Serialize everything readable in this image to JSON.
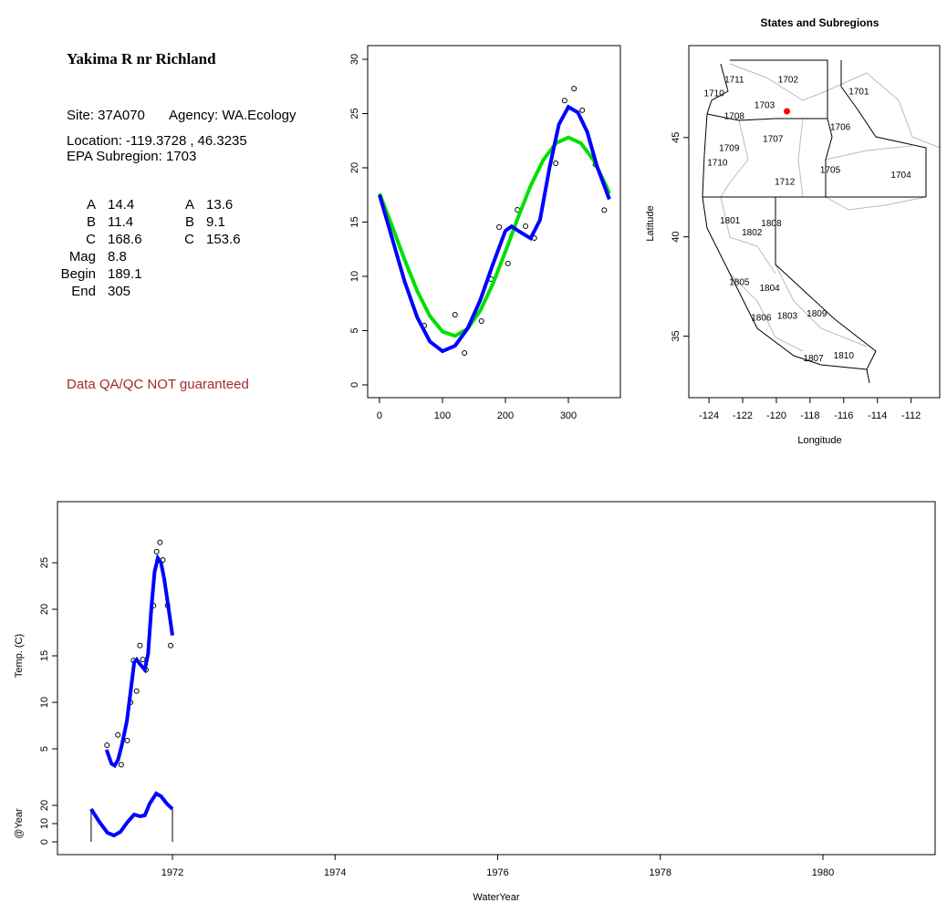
{
  "info": {
    "title": "Yakima R nr Richland",
    "site": "Site: 37A070",
    "agency": "Agency: WA.Ecology",
    "location": {
      "label": "Location:",
      "lon": -119.3728,
      "separator": ",",
      "lat": 46.3235
    },
    "subregion": "EPA Subregion: 1703",
    "params": [
      {
        "label": "A",
        "value": 14.4
      },
      {
        "label": "B",
        "value": 11.4
      },
      {
        "label": "C",
        "value": 168.6
      },
      {
        "label": "Mag",
        "value": 8.8
      },
      {
        "label": "Begin",
        "value": 189.1
      },
      {
        "label": "End",
        "value": 305
      }
    ],
    "params2": [
      {
        "label": "A",
        "value": 13.6
      },
      {
        "label": "B",
        "value": 9.1
      },
      {
        "label": "C",
        "value": 153.6
      }
    ],
    "disclaimer": "Data QA/QC NOT guaranteed",
    "disclaimer_color": "#a52a2a"
  },
  "chart_data": [
    {
      "type": "scatter",
      "xlim": [
        -18.8,
        382.6
      ],
      "ylim": [
        -1.18,
        31.26
      ],
      "xticks": [
        0,
        100,
        200,
        300
      ],
      "yticks": [
        0,
        5,
        10,
        15,
        20,
        25,
        30
      ],
      "points": {
        "x": [
          71,
          120,
          135,
          162,
          177,
          190,
          204,
          219,
          232,
          246,
          280,
          294,
          309,
          322,
          343,
          357
        ],
        "y": [
          5.46,
          6.47,
          2.94,
          5.88,
          9.75,
          14.54,
          11.18,
          16.13,
          14.62,
          13.53,
          20.42,
          26.2,
          27.3,
          25.3,
          20.3,
          16.1
        ]
      },
      "series": [
        {
          "color": "#00e000",
          "x": [
            0,
            20,
            40,
            60,
            80,
            100,
            120,
            140,
            160,
            180,
            200,
            220,
            240,
            260,
            280,
            300,
            320,
            340,
            360,
            365
          ],
          "values": [
            17.64,
            14.63,
            11.51,
            8.63,
            6.34,
            4.91,
            4.51,
            5.18,
            6.84,
            9.3,
            12.28,
            15.41,
            18.34,
            20.71,
            22.26,
            22.8,
            22.26,
            20.71,
            18.34,
            17.64
          ]
        },
        {
          "color": "#0000ff",
          "x": [
            0,
            20,
            40,
            60,
            80,
            100,
            120,
            140,
            160,
            180,
            200,
            210,
            220,
            240,
            255,
            270,
            285,
            300,
            315,
            330,
            345,
            365
          ],
          "values": [
            17.5,
            13.5,
            9.5,
            6.2,
            4.0,
            3.1,
            3.6,
            5.2,
            7.8,
            11.1,
            14.2,
            14.6,
            14.2,
            13.5,
            15.2,
            20.0,
            24.0,
            25.6,
            25.1,
            23.3,
            20.2,
            17.1
          ]
        }
      ]
    },
    {
      "type": "map",
      "title": "States and Subregions",
      "xlabel": "Longitude",
      "ylabel": "Latitude",
      "xlim": [
        -125.2,
        -110.3
      ],
      "ylim": [
        31.9,
        49.63
      ],
      "xticks": [
        -124,
        -122,
        -120,
        -118,
        -116,
        -114,
        -112
      ],
      "yticks": [
        35,
        40,
        45
      ],
      "site_color": "#ff0000",
      "regions": [
        {
          "label": "1711",
          "lon": -122.5,
          "lat": 47.9
        },
        {
          "label": "1702",
          "lon": -119.3,
          "lat": 47.9
        },
        {
          "label": "1710",
          "lon": -123.7,
          "lat": 47.2
        },
        {
          "label": "1703",
          "lon": -120.7,
          "lat": 46.6
        },
        {
          "label": "1701",
          "lon": -115.1,
          "lat": 47.3
        },
        {
          "label": "1708",
          "lon": -122.5,
          "lat": 46.05
        },
        {
          "label": "1706",
          "lon": -116.2,
          "lat": 45.5
        },
        {
          "label": "1707",
          "lon": -120.2,
          "lat": 44.9
        },
        {
          "label": "1709",
          "lon": -122.8,
          "lat": 44.45
        },
        {
          "label": "1710",
          "lon": -123.5,
          "lat": 43.7
        },
        {
          "label": "1705",
          "lon": -116.8,
          "lat": 43.35
        },
        {
          "label": "1704",
          "lon": -112.6,
          "lat": 43.1
        },
        {
          "label": "1712",
          "lon": -119.5,
          "lat": 42.75
        },
        {
          "label": "1801",
          "lon": -122.75,
          "lat": 40.8
        },
        {
          "label": "1808",
          "lon": -120.3,
          "lat": 40.65
        },
        {
          "label": "1802",
          "lon": -121.45,
          "lat": 40.2
        },
        {
          "label": "1805",
          "lon": -122.2,
          "lat": 37.7
        },
        {
          "label": "1804",
          "lon": -120.4,
          "lat": 37.4
        },
        {
          "label": "1806",
          "lon": -120.9,
          "lat": 35.9
        },
        {
          "label": "1803",
          "lon": -119.35,
          "lat": 36.0
        },
        {
          "label": "1809",
          "lon": -117.6,
          "lat": 36.1
        },
        {
          "label": "1810",
          "lon": -116.0,
          "lat": 34.0
        },
        {
          "label": "1807",
          "lon": -117.8,
          "lat": 33.85
        }
      ]
    },
    {
      "type": "timeseries",
      "xlabel": "WaterYear",
      "ylabel": "Temp. (C)",
      "y2label": "@Year",
      "xlim": [
        1970.586,
        1981.38
      ],
      "ylim": [
        -6.37,
        31.57
      ],
      "y2lim": [
        -7,
        186.5
      ],
      "xticks": [
        1972,
        1974,
        1976,
        1978,
        1980
      ],
      "yticks": [
        5,
        10,
        15,
        20,
        25
      ],
      "y2ticks": [
        0,
        10,
        20
      ],
      "points": {
        "x": [
          1971.195,
          1971.329,
          1971.37,
          1971.444,
          1971.485,
          1971.521,
          1971.559,
          1971.6,
          1971.636,
          1971.674,
          1971.767,
          1971.805,
          1971.847,
          1971.882,
          1971.94,
          1971.978
        ],
        "y": [
          5.4,
          6.5,
          3.3,
          5.9,
          10.0,
          14.5,
          11.2,
          16.1,
          14.6,
          13.5,
          20.4,
          26.2,
          27.2,
          25.3,
          20.4,
          16.1
        ]
      },
      "series": [
        {
          "color": "#0000ff",
          "x": [
            1971.19,
            1971.25,
            1971.29,
            1971.33,
            1971.38,
            1971.44,
            1971.49,
            1971.53,
            1971.56,
            1971.6,
            1971.66,
            1971.7,
            1971.74,
            1971.78,
            1971.82,
            1971.86,
            1971.9,
            1971.95,
            1972.0
          ],
          "values": [
            4.9,
            3.4,
            3.2,
            3.8,
            5.5,
            8.0,
            11.5,
            14.3,
            14.6,
            14.1,
            13.5,
            15.2,
            20.0,
            24.0,
            25.5,
            25.0,
            23.2,
            20.2,
            17.2
          ]
        },
        {
          "color": "#0000ff",
          "axis": "y2",
          "x": [
            1971.0,
            1971.1,
            1971.2,
            1971.28,
            1971.36,
            1971.45,
            1971.53,
            1971.6,
            1971.66,
            1971.72,
            1971.8,
            1971.86,
            1971.93,
            1972.0
          ],
          "values": [
            18,
            11,
            5,
            3.5,
            5.5,
            11,
            15,
            14,
            14.5,
            21,
            26.5,
            25,
            21,
            18
          ]
        }
      ]
    }
  ]
}
